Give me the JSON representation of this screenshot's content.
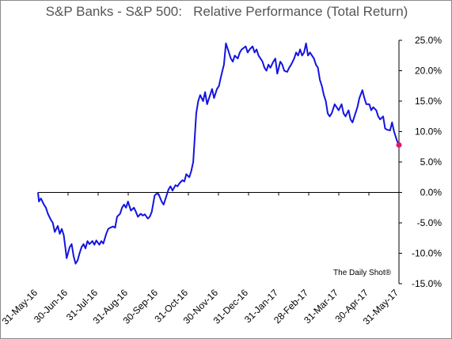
{
  "chart_data": {
    "type": "line",
    "title": "S&P Banks - S&P 500:   Relative Performance (Total Return)",
    "xlabel": "",
    "ylabel": "",
    "x_ticks": [
      "31-May-16",
      "30-Jun-16",
      "31-Jul-16",
      "31-Aug-16",
      "30-Sep-16",
      "31-Oct-16",
      "30-Nov-16",
      "31-Dec-16",
      "31-Jan-17",
      "28-Feb-17",
      "31-Mar-17",
      "30-Apr-17",
      "31-May-17"
    ],
    "y_ticks": [
      "25.0%",
      "20.0%",
      "15.0%",
      "10.0%",
      "5.0%",
      "0.0%",
      "-5.0%",
      "-10.0%",
      "-15.0%"
    ],
    "ylim": [
      -15,
      25
    ],
    "xlim": [
      "2016-05-31",
      "2017-05-31"
    ],
    "grid": false,
    "annotation": "The Daily Shot®",
    "line_color": "#1414e0",
    "end_marker_color": "#e0156e",
    "series": [
      {
        "points": [
          [
            "2016-05-31",
            0.0
          ],
          [
            "2016-06-01",
            -1.5
          ],
          [
            "2016-06-02",
            -1.2
          ],
          [
            "2016-06-03",
            -1.0
          ],
          [
            "2016-06-06",
            -2.0
          ],
          [
            "2016-06-08",
            -2.5
          ],
          [
            "2016-06-10",
            -3.5
          ],
          [
            "2016-06-13",
            -4.5
          ],
          [
            "2016-06-15",
            -5.0
          ],
          [
            "2016-06-17",
            -6.5
          ],
          [
            "2016-06-20",
            -5.5
          ],
          [
            "2016-06-22",
            -6.8
          ],
          [
            "2016-06-24",
            -6.0
          ],
          [
            "2016-06-26",
            -7.0
          ],
          [
            "2016-06-28",
            -9.5
          ],
          [
            "2016-06-29",
            -10.8
          ],
          [
            "2016-06-30",
            -10.2
          ],
          [
            "2016-07-02",
            -9.0
          ],
          [
            "2016-07-04",
            -8.5
          ],
          [
            "2016-07-06",
            -10.5
          ],
          [
            "2016-07-08",
            -11.7
          ],
          [
            "2016-07-10",
            -11.2
          ],
          [
            "2016-07-12",
            -10.0
          ],
          [
            "2016-07-14",
            -9.0
          ],
          [
            "2016-07-16",
            -8.5
          ],
          [
            "2016-07-18",
            -9.2
          ],
          [
            "2016-07-20",
            -8.0
          ],
          [
            "2016-07-22",
            -8.5
          ],
          [
            "2016-07-25",
            -8.0
          ],
          [
            "2016-07-27",
            -8.6
          ],
          [
            "2016-07-29",
            -7.9
          ],
          [
            "2016-08-01",
            -8.6
          ],
          [
            "2016-08-03",
            -8.0
          ],
          [
            "2016-08-05",
            -8.4
          ],
          [
            "2016-08-08",
            -6.8
          ],
          [
            "2016-08-10",
            -6.0
          ],
          [
            "2016-08-12",
            -5.8
          ],
          [
            "2016-08-15",
            -5.6
          ],
          [
            "2016-08-17",
            -5.8
          ],
          [
            "2016-08-19",
            -4.0
          ],
          [
            "2016-08-22",
            -3.5
          ],
          [
            "2016-08-24",
            -2.5
          ],
          [
            "2016-08-26",
            -2.0
          ],
          [
            "2016-08-28",
            -2.5
          ],
          [
            "2016-08-30",
            -1.5
          ],
          [
            "2016-08-31",
            -2.0
          ],
          [
            "2016-09-02",
            -3.0
          ],
          [
            "2016-09-05",
            -2.5
          ],
          [
            "2016-09-07",
            -3.2
          ],
          [
            "2016-09-09",
            -4.0
          ],
          [
            "2016-09-12",
            -3.5
          ],
          [
            "2016-09-14",
            -3.8
          ],
          [
            "2016-09-16",
            -3.6
          ],
          [
            "2016-09-19",
            -4.3
          ],
          [
            "2016-09-21",
            -4.0
          ],
          [
            "2016-09-23",
            -3.2
          ],
          [
            "2016-09-26",
            -0.5
          ],
          [
            "2016-09-28",
            -0.2
          ],
          [
            "2016-09-30",
            -0.3
          ],
          [
            "2016-10-03",
            -1.5
          ],
          [
            "2016-10-05",
            -2.0
          ],
          [
            "2016-10-07",
            -1.0
          ],
          [
            "2016-10-10",
            0.5
          ],
          [
            "2016-10-12",
            1.0
          ],
          [
            "2016-10-14",
            0.3
          ],
          [
            "2016-10-17",
            1.2
          ],
          [
            "2016-10-19",
            1.0
          ],
          [
            "2016-10-21",
            1.5
          ],
          [
            "2016-10-24",
            2.0
          ],
          [
            "2016-10-26",
            1.8
          ],
          [
            "2016-10-28",
            3.0
          ],
          [
            "2016-10-31",
            2.5
          ],
          [
            "2016-11-02",
            3.5
          ],
          [
            "2016-11-04",
            5.0
          ],
          [
            "2016-11-07",
            13.0
          ],
          [
            "2016-11-09",
            15.0
          ],
          [
            "2016-11-11",
            16.0
          ],
          [
            "2016-11-14",
            15.0
          ],
          [
            "2016-11-16",
            16.5
          ],
          [
            "2016-11-18",
            14.5
          ],
          [
            "2016-11-21",
            16.0
          ],
          [
            "2016-11-23",
            17.0
          ],
          [
            "2016-11-25",
            15.5
          ],
          [
            "2016-11-28",
            17.0
          ],
          [
            "2016-11-30",
            17.5
          ],
          [
            "2016-12-02",
            19.0
          ],
          [
            "2016-12-05",
            21.0
          ],
          [
            "2016-12-07",
            24.5
          ],
          [
            "2016-12-09",
            23.5
          ],
          [
            "2016-12-12",
            22.0
          ],
          [
            "2016-12-14",
            21.5
          ],
          [
            "2016-12-16",
            22.5
          ],
          [
            "2016-12-19",
            22.0
          ],
          [
            "2016-12-21",
            23.0
          ],
          [
            "2016-12-23",
            23.5
          ],
          [
            "2016-12-27",
            24.0
          ],
          [
            "2016-12-29",
            23.0
          ],
          [
            "2016-12-31",
            23.5
          ],
          [
            "2017-01-03",
            24.0
          ],
          [
            "2017-01-05",
            23.0
          ],
          [
            "2017-01-07",
            23.5
          ],
          [
            "2017-01-09",
            22.5
          ],
          [
            "2017-01-11",
            22.0
          ],
          [
            "2017-01-13",
            21.5
          ],
          [
            "2017-01-15",
            20.5
          ],
          [
            "2017-01-17",
            20.0
          ],
          [
            "2017-01-19",
            21.0
          ],
          [
            "2017-01-21",
            20.5
          ],
          [
            "2017-01-24",
            21.5
          ],
          [
            "2017-01-26",
            22.0
          ],
          [
            "2017-01-28",
            19.5
          ],
          [
            "2017-01-31",
            21.5
          ],
          [
            "2017-02-02",
            21.0
          ],
          [
            "2017-02-04",
            20.0
          ],
          [
            "2017-02-07",
            19.8
          ],
          [
            "2017-02-09",
            20.5
          ],
          [
            "2017-02-11",
            21.0
          ],
          [
            "2017-02-14",
            22.0
          ],
          [
            "2017-02-16",
            23.0
          ],
          [
            "2017-02-18",
            22.5
          ],
          [
            "2017-02-20",
            23.5
          ],
          [
            "2017-02-22",
            22.5
          ],
          [
            "2017-02-24",
            23.0
          ],
          [
            "2017-02-26",
            24.5
          ],
          [
            "2017-02-28",
            22.5
          ],
          [
            "2017-03-02",
            23.0
          ],
          [
            "2017-03-04",
            22.5
          ],
          [
            "2017-03-06",
            22.0
          ],
          [
            "2017-03-08",
            21.0
          ],
          [
            "2017-03-10",
            20.5
          ],
          [
            "2017-03-12",
            18.5
          ],
          [
            "2017-03-14",
            17.5
          ],
          [
            "2017-03-16",
            16.0
          ],
          [
            "2017-03-18",
            15.0
          ],
          [
            "2017-03-20",
            13.0
          ],
          [
            "2017-03-22",
            12.5
          ],
          [
            "2017-03-24",
            13.0
          ],
          [
            "2017-03-27",
            14.5
          ],
          [
            "2017-03-29",
            14.0
          ],
          [
            "2017-03-31",
            13.5
          ],
          [
            "2017-04-03",
            14.5
          ],
          [
            "2017-04-05",
            13.0
          ],
          [
            "2017-04-07",
            12.5
          ],
          [
            "2017-04-10",
            13.5
          ],
          [
            "2017-04-12",
            12.0
          ],
          [
            "2017-04-14",
            11.5
          ],
          [
            "2017-04-17",
            13.0
          ],
          [
            "2017-04-19",
            14.0
          ],
          [
            "2017-04-21",
            15.5
          ],
          [
            "2017-04-24",
            16.8
          ],
          [
            "2017-04-26",
            15.5
          ],
          [
            "2017-04-28",
            14.5
          ],
          [
            "2017-05-01",
            14.5
          ],
          [
            "2017-05-03",
            13.5
          ],
          [
            "2017-05-05",
            14.0
          ],
          [
            "2017-05-08",
            13.5
          ],
          [
            "2017-05-10",
            12.5
          ],
          [
            "2017-05-12",
            12.0
          ],
          [
            "2017-05-15",
            12.5
          ],
          [
            "2017-05-17",
            10.5
          ],
          [
            "2017-05-19",
            10.3
          ],
          [
            "2017-05-22",
            10.2
          ],
          [
            "2017-05-24",
            11.5
          ],
          [
            "2017-05-26",
            10.0
          ],
          [
            "2017-05-29",
            8.5
          ],
          [
            "2017-05-31",
            7.8
          ]
        ]
      }
    ]
  }
}
